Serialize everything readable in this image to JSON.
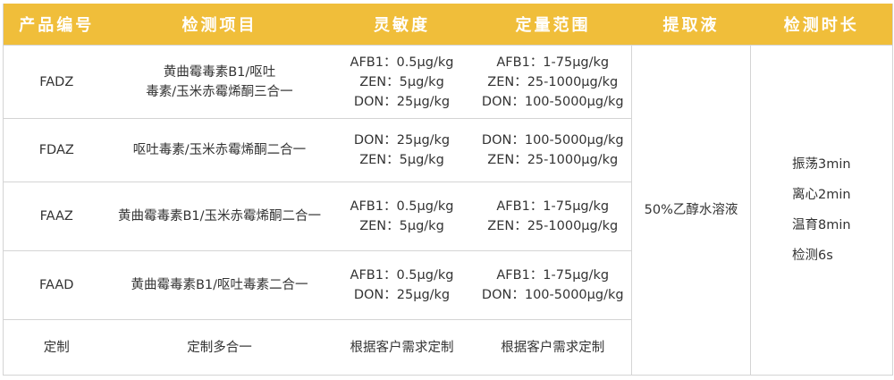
{
  "headers": [
    "产品编号",
    "检测项目",
    "灵敏度",
    "定量范围",
    "提取液",
    "检测时长"
  ],
  "rows": [
    {
      "code": "FADZ",
      "item": [
        "黄曲霉毒素B1/呕吐",
        "毒素/玉米赤霉烯酮三合一"
      ],
      "sensitivity": [
        "AFB1：0.5μg/kg",
        "ZEN：5μg/kg",
        "DON：25μg/kg"
      ],
      "range": [
        "AFB1：1-75μg/kg",
        "ZEN：25-1000μg/kg",
        "DON：100-5000μg/kg"
      ]
    },
    {
      "code": "FDAZ",
      "item": [
        "呕吐毒素/玉米赤霉烯酮二合一"
      ],
      "sensitivity": [
        "DON：25μg/kg",
        "ZEN：5μg/kg"
      ],
      "range": [
        "DON：100-5000μg/kg",
        "ZEN：25-1000μg/kg"
      ]
    },
    {
      "code": "FAAZ",
      "item": [
        "黄曲霉毒素B1/玉米赤霉烯酮二合一"
      ],
      "sensitivity": [
        "AFB1：0.5μg/kg",
        "ZEN：5μg/kg"
      ],
      "range": [
        "AFB1：1-75μg/kg",
        "ZEN：25-1000μg/kg"
      ]
    },
    {
      "code": "FAAD",
      "item": [
        "黄曲霉毒素B1/呕吐毒素二合一"
      ],
      "sensitivity": [
        "AFB1：0.5μg/kg",
        "DON：25μg/kg"
      ],
      "range": [
        "AFB1：1-75μg/kg",
        "DON：100-5000μg/kg"
      ]
    },
    {
      "code": "定制",
      "item": [
        "定制多合一"
      ],
      "sensitivity": [
        "根据客户需求定制"
      ],
      "range": [
        "根据客户需求定制"
      ]
    }
  ],
  "extraction": "50%乙醇水溶液",
  "duration": [
    "振荡3min",
    "离心2min",
    "温育8min",
    "检测6s"
  ],
  "colors": {
    "header_bg": "#F0BE3A",
    "header_text": "#FFFFFF"
  }
}
